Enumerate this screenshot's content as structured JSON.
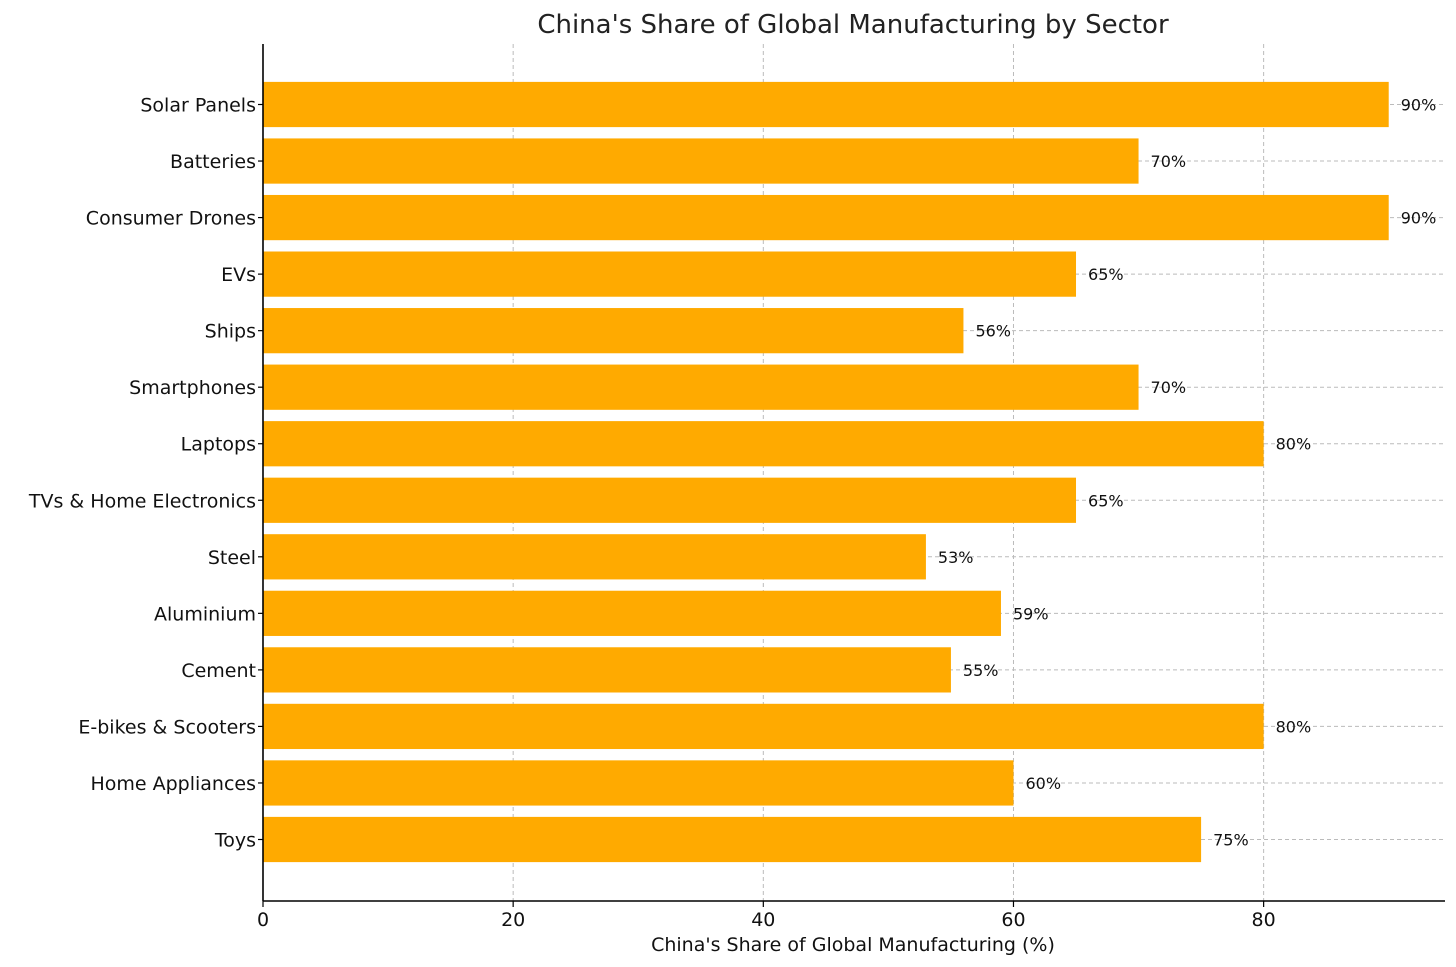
{
  "chart_data": {
    "type": "bar",
    "orientation": "horizontal",
    "title": "China's Share of Global Manufacturing by Sector",
    "xlabel": "China's Share of Global Manufacturing (%)",
    "ylabel": "",
    "categories": [
      "Solar Panels",
      "Batteries",
      "Consumer Drones",
      "EVs",
      "Ships",
      "Smartphones",
      "Laptops",
      "TVs & Home Electronics",
      "Steel",
      "Aluminium",
      "Cement",
      "E-bikes & Scooters",
      "Home Appliances",
      "Toys"
    ],
    "values": [
      90,
      70,
      90,
      65,
      56,
      70,
      80,
      65,
      53,
      59,
      55,
      80,
      60,
      75
    ],
    "value_labels": [
      "90%",
      "70%",
      "90%",
      "65%",
      "56%",
      "70%",
      "80%",
      "65%",
      "53%",
      "59%",
      "55%",
      "80%",
      "60%",
      "75%"
    ],
    "xlim": [
      0,
      94.5
    ],
    "xticks": [
      0,
      20,
      40,
      60,
      80
    ],
    "xtick_labels": [
      "0",
      "20",
      "40",
      "60",
      "80"
    ],
    "grid": true,
    "bar_color": "#FFAA00",
    "grid_color": "#bbbbbb"
  }
}
